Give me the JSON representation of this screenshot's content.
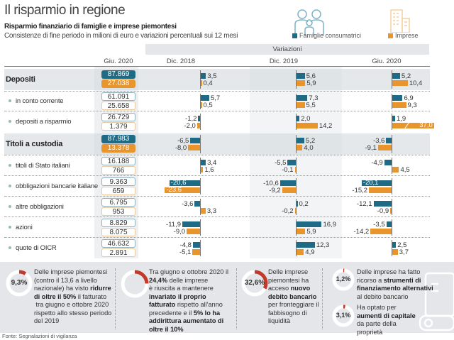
{
  "title": "Il risparmio in regione",
  "subtitle": "Risparmio finanziario di famiglie e imprese piemontesi",
  "description": "Consistenze di fine periodo in milioni di euro e variazioni percentuali sui 12 mesi",
  "legend": [
    {
      "name": "Famiglie consumatrici",
      "color": "#1f6b85",
      "icon": "family-icon"
    },
    {
      "name": "Imprese",
      "color": "#e8952e",
      "icon": "building-icon"
    }
  ],
  "variazioni_label": "Variazioni",
  "chart_data": {
    "type": "bar",
    "orientation": "horizontal",
    "stock_column": "Giu. 2020",
    "periods": [
      "Dic. 2018",
      "Dic. 2019",
      "Giu. 2020"
    ],
    "series": [
      "Famiglie consumatrici",
      "Imprese"
    ],
    "rows": [
      {
        "label": "Depositi",
        "total": true,
        "stock": [
          "87.869",
          "27.038"
        ],
        "values": [
          [
            3.5,
            0.4
          ],
          [
            5.6,
            5.9
          ],
          [
            5.2,
            10.4
          ]
        ],
        "labels": [
          [
            "3,5",
            "0,4"
          ],
          [
            "5,6",
            "5,9"
          ],
          [
            "5,2",
            "10,4"
          ]
        ]
      },
      {
        "label": "in conto corrente",
        "total": false,
        "stock": [
          "61.091",
          "25.658"
        ],
        "values": [
          [
            5.7,
            0.5
          ],
          [
            7.3,
            5.5
          ],
          [
            6.9,
            9.3
          ]
        ],
        "labels": [
          [
            "5,7",
            "0,5"
          ],
          [
            "7,3",
            "5,5"
          ],
          [
            "6,9",
            "9,3"
          ]
        ]
      },
      {
        "label": "depositi a risparmio",
        "total": false,
        "stock": [
          "26.729",
          "1.379"
        ],
        "values": [
          [
            -1.2,
            -2.0
          ],
          [
            2.0,
            14.2
          ],
          [
            1.9,
            37.0
          ]
        ],
        "labels": [
          [
            "-1,2",
            "-2,0"
          ],
          [
            "2,0",
            "14,2"
          ],
          [
            "1,9",
            "37,0"
          ]
        ]
      },
      {
        "label": "Titoli a custodia",
        "total": true,
        "stock": [
          "87.983",
          "13.378"
        ],
        "values": [
          [
            -6.5,
            -8.0
          ],
          [
            5.2,
            4.0
          ],
          [
            -3.6,
            -9.1
          ]
        ],
        "labels": [
          [
            "-6,5",
            "-8,0"
          ],
          [
            "5,2",
            "4,0"
          ],
          [
            "-3,6",
            "-9,1"
          ]
        ]
      },
      {
        "label": "titoli di Stato italiani",
        "total": false,
        "stock": [
          "16.188",
          "766"
        ],
        "values": [
          [
            3.4,
            1.6
          ],
          [
            -5.5,
            -0.1
          ],
          [
            -4.9,
            4.5
          ]
        ],
        "labels": [
          [
            "3,4",
            "1,6"
          ],
          [
            "-5,5",
            "-0,1"
          ],
          [
            "-4,9",
            "4,5"
          ]
        ]
      },
      {
        "label": "obbligazioni bancarie italiane",
        "total": false,
        "stock": [
          "9.363",
          "659"
        ],
        "values": [
          [
            -20.6,
            -23.6
          ],
          [
            -10.6,
            -9.2
          ],
          [
            -20.1,
            -15.2
          ]
        ],
        "labels": [
          [
            "-20,6",
            "-23,6"
          ],
          [
            "-10,6",
            "-9,2"
          ],
          [
            "-20,1",
            "-15,2"
          ]
        ]
      },
      {
        "label": "altre obbligazioni",
        "total": false,
        "stock": [
          "6.795",
          "953"
        ],
        "values": [
          [
            -3.6,
            3.3
          ],
          [
            0.2,
            -0.2
          ],
          [
            -12.1,
            -0.9
          ]
        ],
        "labels": [
          [
            "-3,6",
            "3,3"
          ],
          [
            "0,2",
            "-0,2"
          ],
          [
            "-12,1",
            "-0,9"
          ]
        ]
      },
      {
        "label": "azioni",
        "total": false,
        "stock": [
          "8.829",
          "8.075"
        ],
        "values": [
          [
            -11.9,
            -9.0
          ],
          [
            16.9,
            5.9
          ],
          [
            -3.5,
            -14.2
          ]
        ],
        "labels": [
          [
            "-11,9",
            "-9,0"
          ],
          [
            "16,9",
            "5,9"
          ],
          [
            "-3,5",
            "-14,2"
          ]
        ]
      },
      {
        "label": "quote di OICR",
        "total": false,
        "stock": [
          "46.632",
          "2.891"
        ],
        "values": [
          [
            -4.8,
            -5.1
          ],
          [
            12.3,
            4.9
          ],
          [
            2.5,
            3.7
          ]
        ],
        "labels": [
          [
            "-4,8",
            "-5,1"
          ],
          [
            "12,3",
            "4,9"
          ],
          [
            "2,5",
            "3,7"
          ]
        ]
      }
    ]
  },
  "facts": [
    {
      "percent": "9,3%",
      "value": 9.3,
      "text_html": "Delle imprese piemontesi (contro il 13,6 a livello nazionale) ha visto <b>ridurre di oltre il 50%</b> il fatturato<br>&nbsp;tra giugno e ottobre 2020 rispetto allo stesso periodo del 2019"
    },
    {
      "percent": "",
      "value": 24.4,
      "text_html": "Tra giugno e ottobre 2020 il <b>24,4%</b> delle imprese<br>è riuscita a mantenere <b>invariato il proprio fatturato</b> rispetto all'anno precedente e il <b>5% lo ha addirittura aumentato di oltre il 10%</b>"
    },
    {
      "percent": "32,6%",
      "value": 32.6,
      "text_html": "Delle imprese piemontesi ha acceso <b>nuovo debito bancario</b> per fronteggiare il fabbisogno di liquidità"
    },
    {
      "percent": "1,2%",
      "value": 1.2,
      "text_html": "Delle imprese ha fatto ricorso a <b>strumenti di finanziamento alternativi</b> al debito bancario"
    },
    {
      "percent": "3,1%",
      "value": 3.1,
      "text_html": "Ha optato per <b>aumenti di capitale</b> da parte della proprietà"
    }
  ],
  "source": "Fonte: Segnalazioni di vigilanza"
}
